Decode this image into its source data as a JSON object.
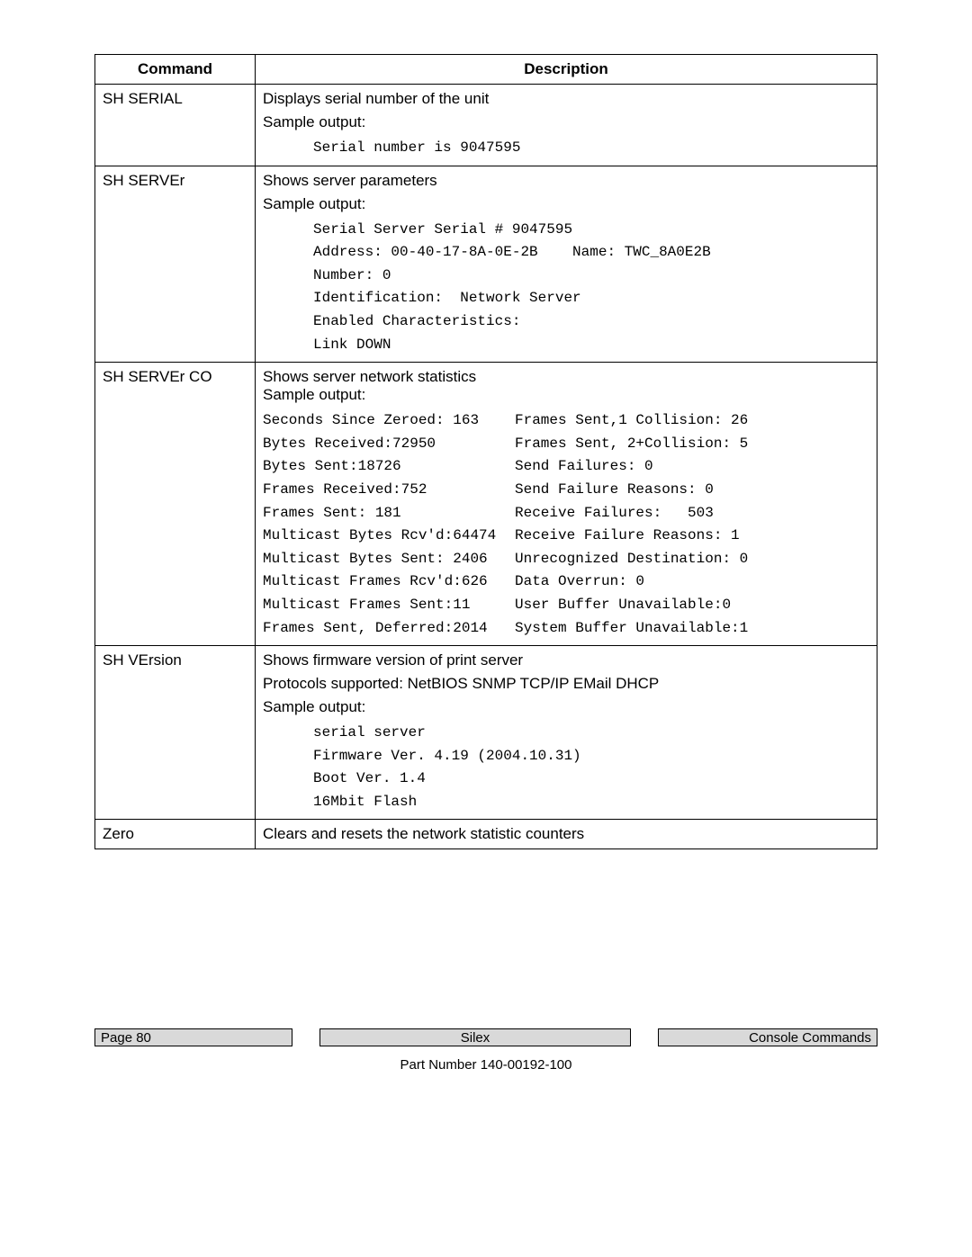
{
  "table": {
    "headers": {
      "command": "Command",
      "description": "Description"
    },
    "rows": [
      {
        "command": "SH SERIAL",
        "desc_lines": [
          "Displays serial number of the unit",
          "Sample output:"
        ],
        "mono_lines": [
          "Serial number is 9047595"
        ]
      },
      {
        "command": "SH SERVEr",
        "desc_lines": [
          "Shows server parameters",
          "Sample output:"
        ],
        "mono_lines": [
          "Serial Server Serial # 9047595",
          "Address: 00-40-17-8A-0E-2B    Name: TWC_8A0E2B\nNumber: 0",
          "Identification:  Network Server",
          "Enabled Characteristics:",
          "Link DOWN"
        ]
      },
      {
        "command": "SH SERVEr CO",
        "desc_lines": [
          "Shows server network statistics",
          "Sample output:"
        ],
        "stat_pairs": [
          {
            "l": "Seconds Since Zeroed: 163",
            "r": "Frames Sent,1 Collision: 26"
          },
          {
            "l": "Bytes Received:72950",
            "r": "Frames Sent, 2+Collision: 5"
          },
          {
            "l": "Bytes Sent:18726",
            "r": "Send Failures: 0"
          },
          {
            "l": "Frames Received:752",
            "r": "Send Failure Reasons: 0"
          },
          {
            "l": "Frames Sent: 181",
            "r": "Receive Failures:   503"
          },
          {
            "l": "Multicast Bytes Rcv'd:64474",
            "r": "Receive Failure Reasons: 1"
          },
          {
            "l": "Multicast Bytes Sent: 2406",
            "r": "Unrecognized Destination: 0"
          },
          {
            "l": "Multicast Frames Rcv'd:626",
            "r": "Data Overrun: 0"
          },
          {
            "l": "Multicast Frames Sent:11",
            "r": "User Buffer Unavailable:0"
          },
          {
            "l": "Frames Sent, Deferred:2014",
            "r": "System Buffer Unavailable:1"
          }
        ]
      },
      {
        "command": "SH VErsion",
        "desc_lines": [
          "Shows firmware version of print server",
          "Protocols supported:   NetBIOS SNMP TCP/IP EMail DHCP",
          "Sample output:"
        ],
        "mono_lines": [
          "serial server",
          "Firmware Ver. 4.19 (2004.10.31)",
          "Boot Ver. 1.4",
          "16Mbit Flash"
        ]
      },
      {
        "command": "Zero",
        "desc_lines": [
          "Clears and resets the network statistic counters"
        ]
      }
    ]
  },
  "footer": {
    "page": "Page 80",
    "brand": "Silex",
    "section": "Console Commands",
    "part_number": "Part Number 140-00192-100"
  }
}
